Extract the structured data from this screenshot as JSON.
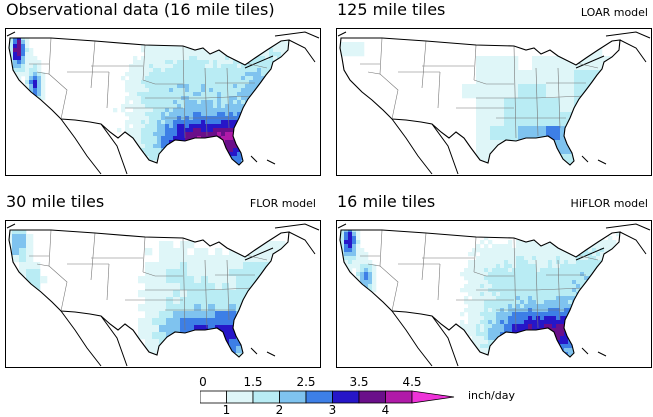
{
  "panels": [
    {
      "id": "obs",
      "title": "Observational data (16 mile tiles)",
      "model": ""
    },
    {
      "id": "loar",
      "title": "125 mile tiles",
      "model": "LOAR model"
    },
    {
      "id": "flor",
      "title": "30 mile tiles",
      "model": "FLOR model"
    },
    {
      "id": "hiflor",
      "title": "16 mile tiles",
      "model": "HiFLOR model"
    }
  ],
  "colorbar": {
    "unit": "inch/day",
    "labels_top": [
      "0",
      "1.5",
      "2.5",
      "3.5",
      "4.5"
    ],
    "labels_bottom": [
      "1",
      "2",
      "3",
      "4"
    ],
    "bins": [
      {
        "range": "0-1",
        "color": "#ffffff"
      },
      {
        "range": "1-1.5",
        "color": "#dff6f8"
      },
      {
        "range": "1.5-2",
        "color": "#b9ecf4"
      },
      {
        "range": "2-2.5",
        "color": "#7fc3ef"
      },
      {
        "range": "2.5-3",
        "color": "#3d7fe6"
      },
      {
        "range": "3-3.5",
        "color": "#2616c8"
      },
      {
        "range": "3.5-4",
        "color": "#6a0f8a"
      },
      {
        "range": "4-4.5",
        "color": "#b01aa8"
      },
      {
        "range": ">4.5",
        "color": "#ee33d8"
      }
    ]
  }
}
